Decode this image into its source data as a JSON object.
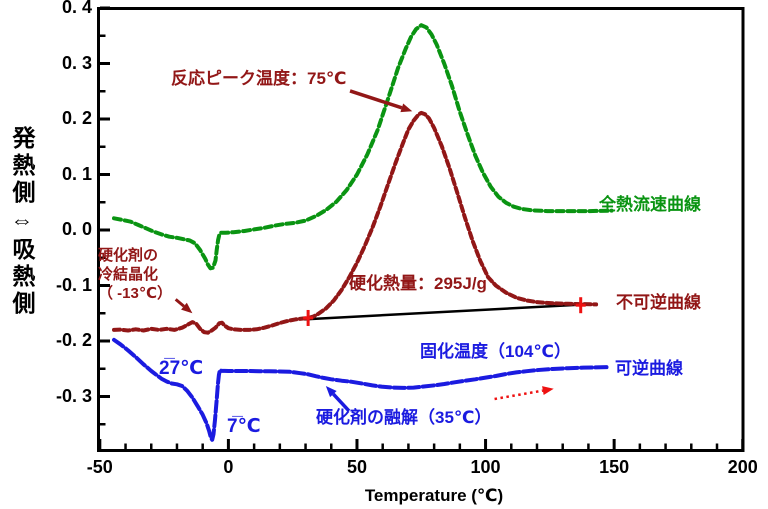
{
  "chart_data": {
    "type": "line",
    "title": "",
    "xlabel": "Temperature (℃)",
    "ylabel_display": "発熱側⇔吸熱側",
    "xlim": [
      -50,
      200
    ],
    "ylim": [
      -0.4,
      0.4
    ],
    "x_ticks": [
      -50,
      0,
      50,
      100,
      150,
      200
    ],
    "x_tick_labels": [
      "-50",
      "0",
      "50",
      "100",
      "150",
      "200"
    ],
    "y_ticks": [
      0.4,
      0.3,
      0.2,
      0.1,
      0.0,
      -0.1,
      -0.2,
      -0.3
    ],
    "y_tick_labels": [
      "0. 4",
      "0. 3",
      "0. 2",
      "0. 1",
      "0. 0",
      "-0. 1",
      "-0. 2",
      "-0. 3"
    ],
    "grid": false,
    "legend_position": "inline-labels",
    "colors": {
      "green": "#0a9412",
      "dark_red": "#921717",
      "blue": "#1b1be0",
      "red": "#ee1111",
      "black": "#000000"
    },
    "series": [
      {
        "name": "全熱流速曲線",
        "color": "#0a9412",
        "dash": "7 4",
        "width": 4,
        "points": [
          [
            -44.5,
            0.021
          ],
          [
            -41,
            0.018
          ],
          [
            -38,
            0.015
          ],
          [
            -35,
            0.009
          ],
          [
            -32,
            0.003
          ],
          [
            -29,
            -0.003
          ],
          [
            -26,
            -0.008
          ],
          [
            -23,
            -0.012
          ],
          [
            -20,
            -0.014
          ],
          [
            -17,
            -0.017
          ],
          [
            -15,
            -0.019
          ],
          [
            -13,
            -0.024
          ],
          [
            -11,
            -0.036
          ],
          [
            -9,
            -0.052
          ],
          [
            -8,
            -0.062
          ],
          [
            -7,
            -0.069
          ],
          [
            -6,
            -0.068
          ],
          [
            -5,
            -0.055
          ],
          [
            -4.5,
            -0.035
          ],
          [
            -4,
            -0.018
          ],
          [
            -3.5,
            -0.008
          ],
          [
            -3,
            -0.005
          ],
          [
            -1,
            -0.005
          ],
          [
            2,
            -0.004
          ],
          [
            6,
            -0.002
          ],
          [
            10,
            0.001
          ],
          [
            14,
            0.004
          ],
          [
            18,
            0.008
          ],
          [
            22,
            0.011
          ],
          [
            26,
            0.013
          ],
          [
            30,
            0.017
          ],
          [
            34,
            0.025
          ],
          [
            38,
            0.036
          ],
          [
            42,
            0.051
          ],
          [
            46,
            0.072
          ],
          [
            50,
            0.1
          ],
          [
            54,
            0.136
          ],
          [
            58,
            0.18
          ],
          [
            62,
            0.235
          ],
          [
            66,
            0.292
          ],
          [
            69,
            0.327
          ],
          [
            71,
            0.348
          ],
          [
            73,
            0.362
          ],
          [
            75,
            0.369
          ],
          [
            77,
            0.365
          ],
          [
            79,
            0.352
          ],
          [
            81,
            0.334
          ],
          [
            84,
            0.299
          ],
          [
            87,
            0.259
          ],
          [
            90,
            0.213
          ],
          [
            93,
            0.172
          ],
          [
            96,
            0.134
          ],
          [
            99,
            0.103
          ],
          [
            102,
            0.078
          ],
          [
            105,
            0.06
          ],
          [
            108,
            0.049
          ],
          [
            111,
            0.042
          ],
          [
            114,
            0.038
          ],
          [
            118,
            0.0355
          ],
          [
            124,
            0.034
          ],
          [
            132,
            0.034
          ],
          [
            140,
            0.034
          ],
          [
            149,
            0.035
          ]
        ]
      },
      {
        "name": "不可逆曲線",
        "color": "#921717",
        "dash": "6 3.5",
        "width": 4,
        "points": [
          [
            -44.5,
            -0.18
          ],
          [
            -42,
            -0.1795
          ],
          [
            -39,
            -0.181
          ],
          [
            -36,
            -0.179
          ],
          [
            -33,
            -0.181
          ],
          [
            -30,
            -0.178
          ],
          [
            -27,
            -0.18
          ],
          [
            -24,
            -0.178
          ],
          [
            -21,
            -0.18
          ],
          [
            -18,
            -0.176
          ],
          [
            -16,
            -0.171
          ],
          [
            -14,
            -0.166
          ],
          [
            -12.5,
            -0.169
          ],
          [
            -11,
            -0.178
          ],
          [
            -9.5,
            -0.184
          ],
          [
            -8,
            -0.185
          ],
          [
            -6.5,
            -0.181
          ],
          [
            -5,
            -0.176
          ],
          [
            -3.5,
            -0.168
          ],
          [
            -2.5,
            -0.167
          ],
          [
            -1.5,
            -0.172
          ],
          [
            0,
            -0.177
          ],
          [
            2,
            -0.179
          ],
          [
            5,
            -0.18
          ],
          [
            8,
            -0.18
          ],
          [
            11,
            -0.179
          ],
          [
            14,
            -0.176
          ],
          [
            17,
            -0.172
          ],
          [
            20,
            -0.1675
          ],
          [
            23,
            -0.164
          ],
          [
            26,
            -0.161
          ],
          [
            29,
            -0.1595
          ],
          [
            31,
            -0.1585
          ],
          [
            33,
            -0.156
          ],
          [
            35,
            -0.151
          ],
          [
            38,
            -0.141
          ],
          [
            41,
            -0.127
          ],
          [
            44,
            -0.108
          ],
          [
            47,
            -0.085
          ],
          [
            50,
            -0.059
          ],
          [
            53,
            -0.029
          ],
          [
            56,
            0.004
          ],
          [
            59,
            0.041
          ],
          [
            62,
            0.081
          ],
          [
            65,
            0.121
          ],
          [
            68,
            0.158
          ],
          [
            70,
            0.181
          ],
          [
            72,
            0.197
          ],
          [
            74,
            0.2085
          ],
          [
            75,
            0.211
          ],
          [
            76.5,
            0.2085
          ],
          [
            78,
            0.201
          ],
          [
            80,
            0.184
          ],
          [
            83,
            0.151
          ],
          [
            86,
            0.111
          ],
          [
            89,
            0.067
          ],
          [
            92,
            0.022
          ],
          [
            95,
            -0.02
          ],
          [
            98,
            -0.056
          ],
          [
            101,
            -0.085
          ],
          [
            104,
            -0.1
          ],
          [
            108,
            -0.113
          ],
          [
            112,
            -0.122
          ],
          [
            116,
            -0.127
          ],
          [
            120,
            -0.13
          ],
          [
            126,
            -0.132
          ],
          [
            132,
            -0.133
          ],
          [
            137,
            -0.1335
          ],
          [
            143,
            -0.134
          ]
        ]
      },
      {
        "name": "可逆曲線",
        "color": "#1b1be0",
        "dash": "11 3.5",
        "width": 4,
        "points": [
          [
            -44.5,
            -0.198
          ],
          [
            -42,
            -0.206
          ],
          [
            -39,
            -0.217
          ],
          [
            -36,
            -0.229
          ],
          [
            -33,
            -0.242
          ],
          [
            -30,
            -0.254
          ],
          [
            -28,
            -0.261
          ],
          [
            -26,
            -0.268
          ],
          [
            -24,
            -0.273
          ],
          [
            -22,
            -0.2765
          ],
          [
            -20,
            -0.278
          ],
          [
            -18,
            -0.281
          ],
          [
            -16,
            -0.29
          ],
          [
            -14,
            -0.302
          ],
          [
            -12,
            -0.317
          ],
          [
            -10,
            -0.333
          ],
          [
            -8.5,
            -0.348
          ],
          [
            -7.5,
            -0.362
          ],
          [
            -6.8,
            -0.374
          ],
          [
            -6.3,
            -0.378
          ],
          [
            -5.8,
            -0.368
          ],
          [
            -5.2,
            -0.342
          ],
          [
            -4.6,
            -0.308
          ],
          [
            -4.1,
            -0.278
          ],
          [
            -3.7,
            -0.261
          ],
          [
            -3.3,
            -0.2525
          ],
          [
            -2.8,
            -0.2535
          ],
          [
            0,
            -0.254
          ],
          [
            4,
            -0.254
          ],
          [
            8,
            -0.254
          ],
          [
            12,
            -0.2545
          ],
          [
            16,
            -0.2545
          ],
          [
            20,
            -0.255
          ],
          [
            24,
            -0.2555
          ],
          [
            28,
            -0.258
          ],
          [
            31,
            -0.26
          ],
          [
            34,
            -0.2635
          ],
          [
            37,
            -0.2665
          ],
          [
            40,
            -0.269
          ],
          [
            44,
            -0.2715
          ],
          [
            48,
            -0.2735
          ],
          [
            52,
            -0.2765
          ],
          [
            56,
            -0.28
          ],
          [
            60,
            -0.2825
          ],
          [
            64,
            -0.284
          ],
          [
            68,
            -0.2845
          ],
          [
            72,
            -0.284
          ],
          [
            76,
            -0.282
          ],
          [
            80,
            -0.28
          ],
          [
            84,
            -0.2775
          ],
          [
            88,
            -0.2745
          ],
          [
            92,
            -0.2715
          ],
          [
            96,
            -0.269
          ],
          [
            100,
            -0.266
          ],
          [
            104,
            -0.263
          ],
          [
            108,
            -0.2595
          ],
          [
            112,
            -0.2565
          ],
          [
            116,
            -0.2545
          ],
          [
            120,
            -0.2525
          ],
          [
            126,
            -0.2505
          ],
          [
            132,
            -0.249
          ],
          [
            138,
            -0.248
          ],
          [
            143,
            -0.2475
          ],
          [
            148,
            -0.247
          ]
        ]
      }
    ],
    "baseline": {
      "color": "#000000",
      "width": 2.5,
      "from": [
        29.5,
        -0.161
      ],
      "to": [
        139,
        -0.134
      ],
      "marker_color": "#ee1111",
      "markers": [
        [
          31,
          -0.1585
        ],
        [
          137,
          -0.1355
        ]
      ]
    },
    "arrows": [
      {
        "name": "reaction-peak-arrow",
        "color": "#921717",
        "from": [
          47.3,
          0.2505
        ],
        "to": [
          71.5,
          0.214
        ],
        "dash": null,
        "width": 3.5
      },
      {
        "name": "cold-crystallization-arrow",
        "color": "#921717",
        "from": [
          -20.5,
          -0.125
        ],
        "to": [
          -14,
          -0.15
        ],
        "dash": null,
        "width": 3
      },
      {
        "name": "melting-arrow",
        "color": "#1b1be0",
        "from": [
          46.9,
          -0.326
        ],
        "to": [
          37.9,
          -0.281
        ],
        "dash": null,
        "width": 3.5
      },
      {
        "name": "heating-direction-arrow",
        "color": "#ee1111",
        "from": [
          103.5,
          -0.3045
        ],
        "to": [
          126.5,
          -0.286
        ],
        "dash": "2.5 3.5",
        "width": 2.5
      }
    ],
    "annotations": {
      "reaction_peak": "反応ピーク温度：75℃",
      "curing_heat": "硬化熱量：295J/g",
      "cold_crystallization": [
        "硬化剤の",
        "冷結晶化",
        "（ -13℃）",
        ""
      ],
      "minus27": "2̅7℃",
      "minus7": "7̅℃",
      "melting": "硬化剤の融解（35℃）",
      "solidification": "固化温度（104℃）"
    },
    "key_values": {
      "reaction_peak_c": 75,
      "curing_heat_j_per_g": 295,
      "cold_crystallization_c": -13,
      "melting_c": 35,
      "solidification_c": 104,
      "reversible_shoulder_c": -27,
      "reversible_minimum_c": -7
    }
  }
}
